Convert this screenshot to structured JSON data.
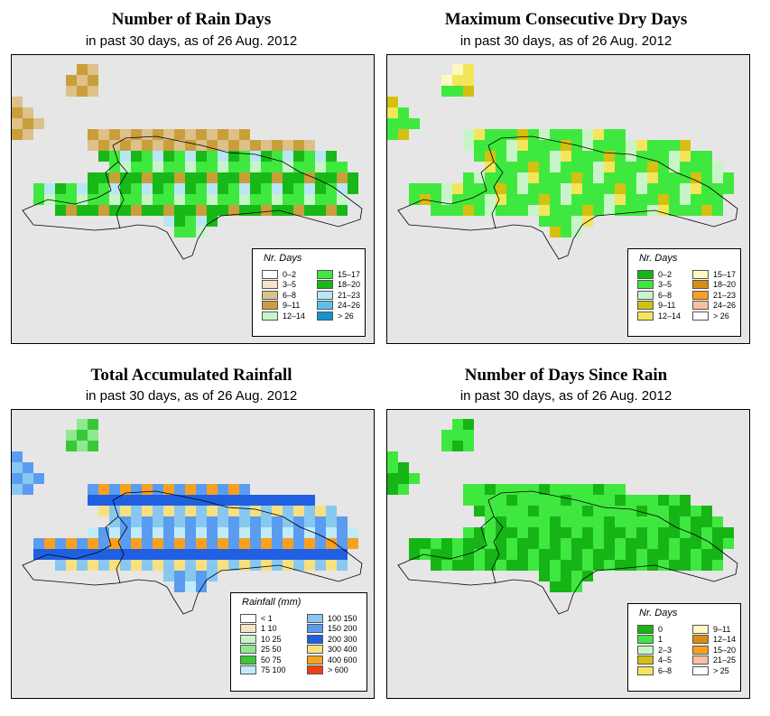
{
  "colors": {
    "panel_bg": "#e6e6e6",
    "island_outline": "#000000"
  },
  "panels": [
    {
      "id": "rain-days",
      "title": "Number of Rain Days",
      "subtitle": "in past 30 days, as of  26 Aug. 2012",
      "legend": {
        "title": "Nr. Days",
        "items": [
          {
            "label": "0–2",
            "color": "#ffffff"
          },
          {
            "label": "3–5",
            "color": "#f3e6c8"
          },
          {
            "label": "6–8",
            "color": "#ddc08a"
          },
          {
            "label": "9–11",
            "color": "#c89f3a"
          },
          {
            "label": "12–14",
            "color": "#c8f5c8"
          },
          {
            "label": "15–17",
            "color": "#3fe83f"
          },
          {
            "label": "18–20",
            "color": "#17b817"
          },
          {
            "label": "21–23",
            "color": "#b8e6f5"
          },
          {
            "label": "24–26",
            "color": "#5cc0ee"
          },
          {
            "label": "> 26",
            "color": "#1890d0"
          }
        ]
      }
    },
    {
      "id": "dry-days",
      "title": "Maximum Consecutive Dry Days",
      "subtitle": "in past 30 days, as of  26 Aug. 2012",
      "legend": {
        "title": "Nr. Days",
        "items": [
          {
            "label": "0–2",
            "color": "#16b416"
          },
          {
            "label": "3–5",
            "color": "#3fe83f"
          },
          {
            "label": "6–8",
            "color": "#c8f5c8"
          },
          {
            "label": "9–11",
            "color": "#d4c010"
          },
          {
            "label": "12–14",
            "color": "#f3e65a"
          },
          {
            "label": "15–17",
            "color": "#fff8c0"
          },
          {
            "label": "18–20",
            "color": "#d88e10"
          },
          {
            "label": "21–23",
            "color": "#f5a020"
          },
          {
            "label": "24–26",
            "color": "#f8c0a0"
          },
          {
            "label": "> 26",
            "color": "#ffffff"
          }
        ]
      }
    },
    {
      "id": "rainfall",
      "title": "Total Accumulated Rainfall",
      "subtitle": "in past 30 days, as of  26 Aug. 2012",
      "legend": {
        "title": "Rainfall (mm)",
        "items": [
          {
            "label": "< 1",
            "color": "#ffffff"
          },
          {
            "label": "1   10",
            "color": "#f3e6c8"
          },
          {
            "label": "10   25",
            "color": "#c8f5c8"
          },
          {
            "label": "25   50",
            "color": "#8ee88e"
          },
          {
            "label": "50   75",
            "color": "#38c838"
          },
          {
            "label": "75  100",
            "color": "#c0ecfa"
          },
          {
            "label": "100  150",
            "color": "#88c8f0"
          },
          {
            "label": "150  200",
            "color": "#5a9cf0"
          },
          {
            "label": "200  300",
            "color": "#2060e0"
          },
          {
            "label": "300  400",
            "color": "#f8e080"
          },
          {
            "label": "400  600",
            "color": "#f8a020"
          },
          {
            "label": "> 600",
            "color": "#f04010"
          }
        ]
      }
    },
    {
      "id": "since-rain",
      "title": "Number of Days Since Rain",
      "subtitle": "in past 30 days, as of  26 Aug. 2012",
      "legend": {
        "title": "Nr. Days",
        "items": [
          {
            "label": "0",
            "color": "#16b416"
          },
          {
            "label": "1",
            "color": "#3fe83f"
          },
          {
            "label": "2–3",
            "color": "#c8f5c8"
          },
          {
            "label": "4–5",
            "color": "#d4c010"
          },
          {
            "label": "6–8",
            "color": "#f3e65a"
          },
          {
            "label": "9–11",
            "color": "#fff8c0"
          },
          {
            "label": "12–14",
            "color": "#d88e10"
          },
          {
            "label": "15–20",
            "color": "#f5a020"
          },
          {
            "label": "21–25",
            "color": "#f8c0a0"
          },
          {
            "label": "> 25",
            "color": "#ffffff"
          }
        ]
      }
    }
  ]
}
